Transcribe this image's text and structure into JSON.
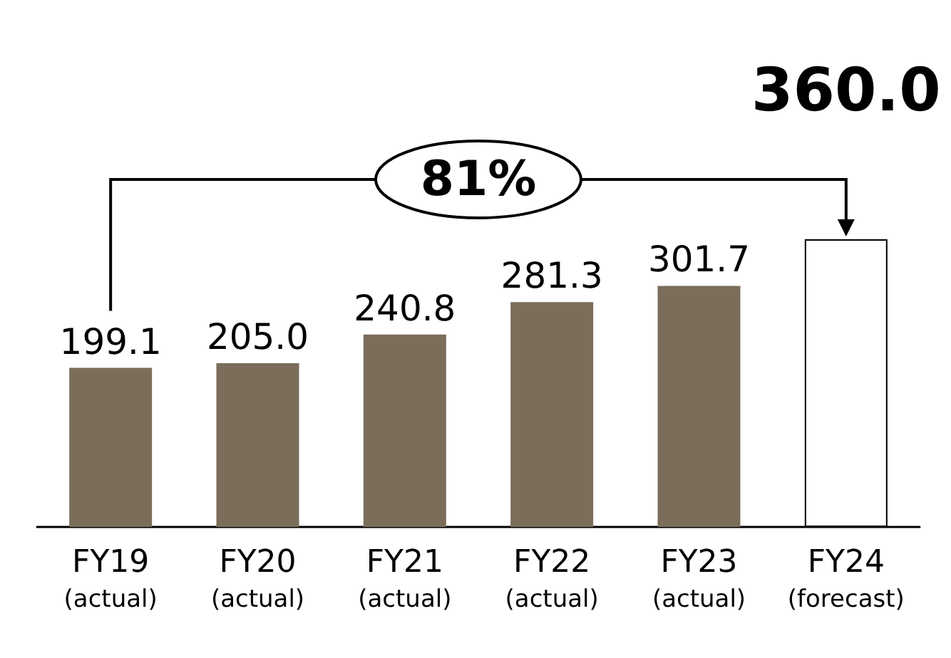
{
  "chart_data": {
    "type": "bar",
    "categories": [
      "FY19\n(actual)",
      "FY20\n(actual)",
      "FY21\n(actual)",
      "FY22\n(actual)",
      "FY23\n(actual)",
      "FY24\n(forecast)"
    ],
    "values": [
      199.1,
      205.0,
      240.8,
      281.3,
      301.7,
      360.0
    ],
    "colors": [
      "#7a6d5a",
      "#7a6d5a",
      "#7a6d5a",
      "#7a6d5a",
      "#7a6d5a",
      "#ffffff"
    ],
    "value_labels": [
      "199.1",
      "205.0",
      "240.8",
      "281.3",
      "301.7",
      "360.0"
    ],
    "annotations": [
      "81%"
    ]
  }
}
